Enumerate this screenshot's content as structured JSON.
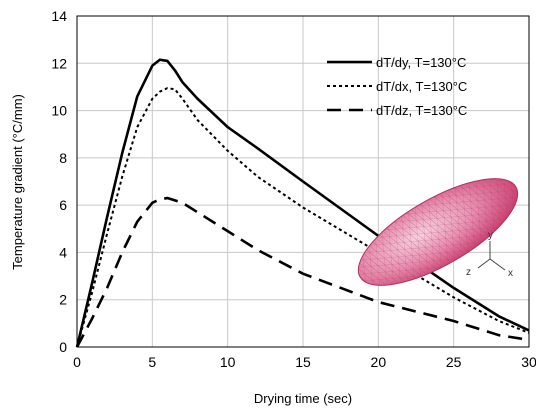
{
  "chart_data": {
    "type": "line",
    "xlabel": "Drying time (sec)",
    "ylabel": "Temperature gradient (°C/mm)",
    "xlim": [
      0,
      30
    ],
    "ylim": [
      0,
      14
    ],
    "xticks": [
      0,
      5,
      10,
      15,
      20,
      25,
      30
    ],
    "yticks": [
      0,
      2,
      4,
      6,
      8,
      10,
      12,
      14
    ],
    "grid": true,
    "legend_position": "top-right",
    "series": [
      {
        "name": "dT/dy, T=130°C",
        "style": "solid",
        "color": "#000000",
        "x": [
          0,
          1,
          2,
          3,
          4,
          5,
          5.5,
          6,
          6.5,
          7,
          8,
          10,
          12,
          15,
          20,
          25,
          28,
          30
        ],
        "y": [
          0,
          2.7,
          5.5,
          8.2,
          10.6,
          11.9,
          12.15,
          12.1,
          11.7,
          11.2,
          10.5,
          9.3,
          8.4,
          7.0,
          4.7,
          2.5,
          1.3,
          0.7
        ]
      },
      {
        "name": "dT/dx, T=130°C",
        "style": "dotted",
        "color": "#000000",
        "x": [
          0,
          1,
          2,
          3,
          4,
          5,
          5.5,
          6,
          6.5,
          7,
          8,
          10,
          12,
          15,
          20,
          25,
          28,
          30
        ],
        "y": [
          0,
          2.3,
          4.8,
          7.2,
          9.3,
          10.5,
          10.8,
          10.95,
          10.9,
          10.5,
          9.6,
          8.3,
          7.2,
          5.9,
          4.0,
          2.1,
          1.1,
          0.6
        ]
      },
      {
        "name": "dT/dz, T=130°C",
        "style": "dashed",
        "color": "#000000",
        "x": [
          0,
          1,
          2,
          3,
          4,
          5,
          5.5,
          6,
          7,
          8,
          10,
          12,
          15,
          20,
          25,
          28,
          30
        ],
        "y": [
          0,
          1.2,
          2.5,
          4.0,
          5.3,
          6.1,
          6.25,
          6.3,
          6.1,
          5.7,
          4.9,
          4.1,
          3.1,
          1.9,
          1.1,
          0.5,
          0.3
        ]
      }
    ],
    "annotations": {
      "mesh_axes": [
        "y",
        "z",
        "x"
      ]
    }
  }
}
